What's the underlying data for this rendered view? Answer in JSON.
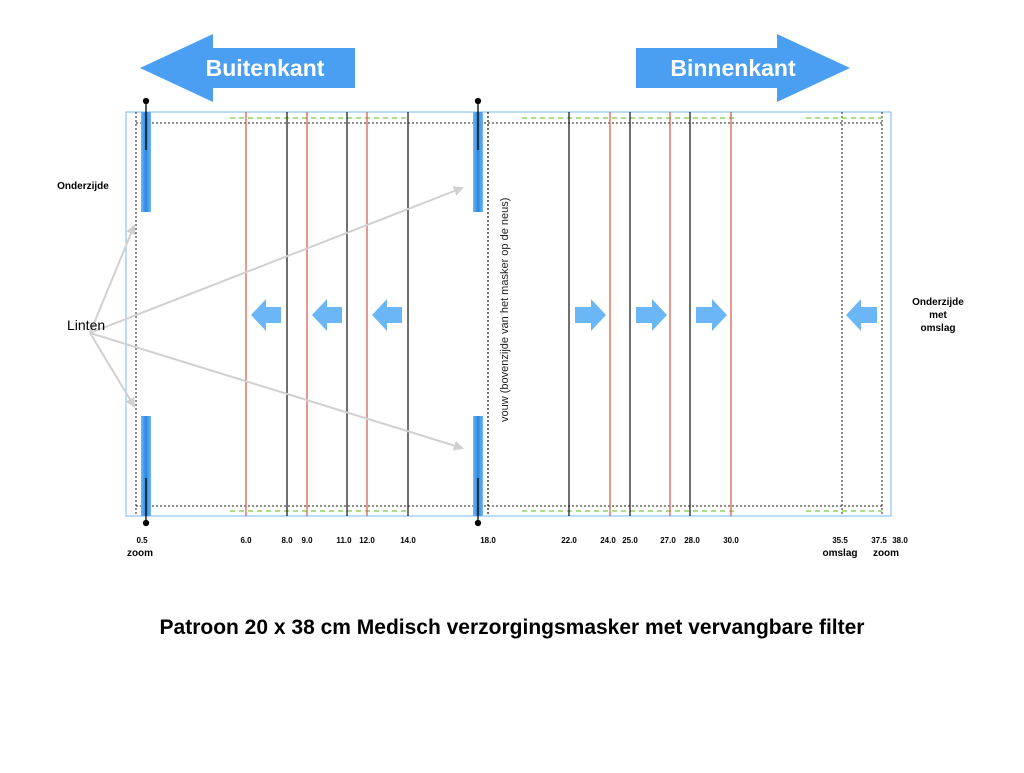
{
  "labels": {
    "outside": "Buitenkant",
    "inside": "Binnenkant",
    "underside": "Onderzijde",
    "underside_fold_l1": "Onderzijde",
    "underside_fold_l2": "met",
    "underside_fold_l3": "omslag",
    "ribbons": "Linten",
    "fold_note": "vouw (bovenzijde van het masker op de neus)",
    "zoom_left": "zoom",
    "omslag": "omslag",
    "zoom_right": "zoom"
  },
  "positions": {
    "p0_5": "0.5",
    "p6_0": "6.0",
    "p8_0": "8.0",
    "p9_0": "9.0",
    "p11_0": "11.0",
    "p12_0": "12.0",
    "p14_0": "14.0",
    "p18_0": "18.0",
    "p22_0": "22.0",
    "p24_0": "24.0",
    "p25_0": "25.0",
    "p27_0": "27.0",
    "p28_0": "28.0",
    "p30_0": "30.0",
    "p35_5": "35.5",
    "p37_5": "37.5",
    "p38_0": "38.0"
  },
  "title": "Patroon 20 x 38 cm Medisch verzorgingsmasker met vervangbare filter",
  "colors": {
    "arrow_blue": "#4a9ff2",
    "small_arrow_blue": "#6ab6f7",
    "red_line": "#d9533f",
    "black_line": "#111111",
    "green_dash": "#7ac943",
    "frame_blue": "#8cc4f0"
  }
}
